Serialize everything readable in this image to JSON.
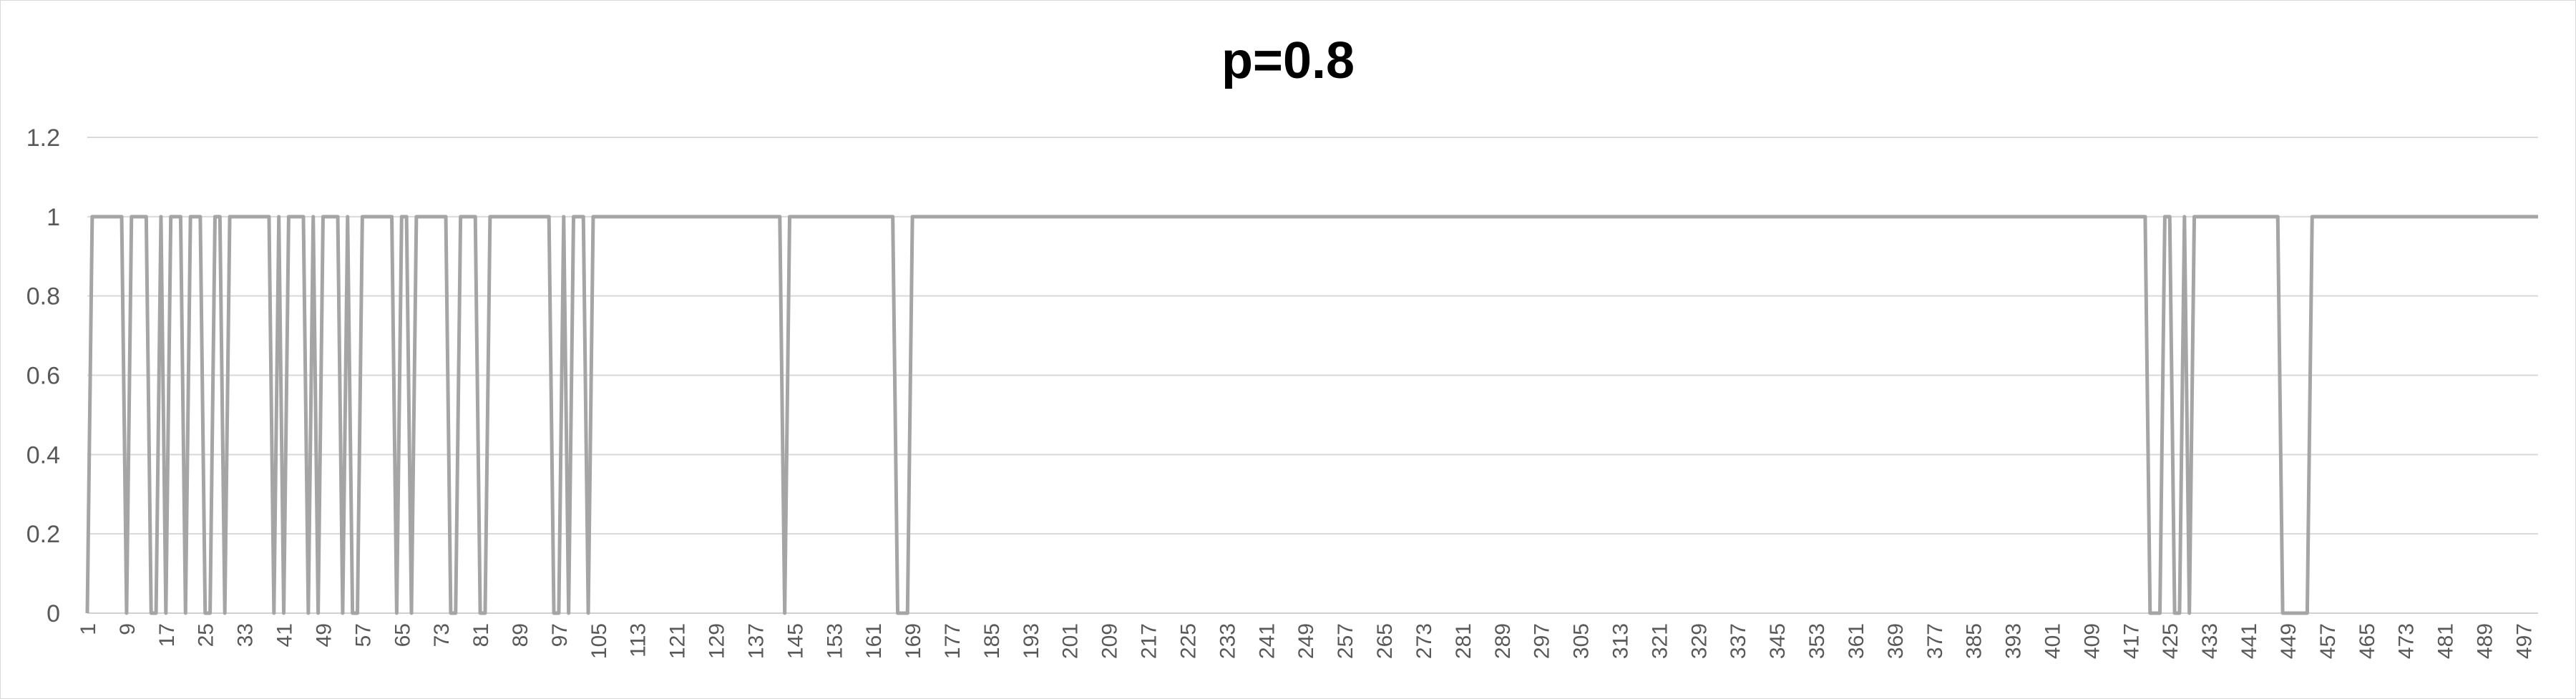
{
  "chart_data": {
    "type": "line",
    "title": "p=0.8",
    "xlabel": "",
    "ylabel": "",
    "ylim": [
      0,
      1.2
    ],
    "yticks": [
      0,
      0.2,
      0.4,
      0.6,
      0.8,
      1,
      1.2
    ],
    "ytick_labels": [
      "0",
      "0.2",
      "0.4",
      "0.6",
      "0.8",
      "1",
      "1.2"
    ],
    "xlim": [
      1,
      500
    ],
    "xtick_labels": [
      "1",
      "9",
      "17",
      "25",
      "33",
      "41",
      "49",
      "57",
      "65",
      "73",
      "81",
      "89",
      "97",
      "105",
      "113",
      "121",
      "129",
      "137",
      "145",
      "153",
      "161",
      "169",
      "177",
      "185",
      "193",
      "201",
      "209",
      "217",
      "225",
      "233",
      "241",
      "249",
      "257",
      "265",
      "273",
      "281",
      "289",
      "297",
      "305",
      "313",
      "321",
      "329",
      "337",
      "345",
      "353",
      "361",
      "369",
      "377",
      "385",
      "393",
      "401",
      "409",
      "417",
      "425",
      "433",
      "441",
      "449",
      "457",
      "465",
      "473",
      "481",
      "489",
      "497"
    ],
    "grid": "horizontal",
    "legend": "none",
    "series_color": "#a5a5a5",
    "series": [
      {
        "zero_x": [
          1,
          9,
          14,
          15,
          17,
          21,
          25,
          26,
          29,
          39,
          41,
          46,
          48,
          53,
          55,
          56,
          64,
          67,
          75,
          76,
          81,
          82,
          96,
          97,
          99,
          103,
          143,
          166,
          167,
          168,
          421,
          422,
          423,
          426,
          427,
          429,
          448,
          449,
          450,
          451,
          452,
          453
        ],
        "x_start": 1,
        "x_end": 500
      }
    ]
  }
}
